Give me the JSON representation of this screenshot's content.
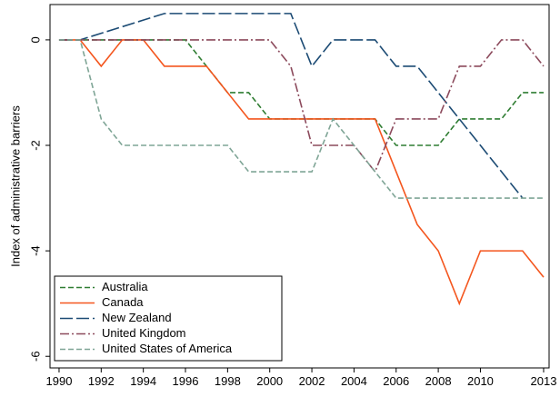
{
  "chart_data": {
    "type": "line",
    "y_label": "Index of administrative barriers",
    "x": [
      1990,
      1991,
      1992,
      1993,
      1994,
      1995,
      1996,
      1997,
      1998,
      1999,
      2000,
      2001,
      2002,
      2003,
      2004,
      2005,
      2006,
      2007,
      2008,
      2009,
      2010,
      2011,
      2012,
      2013
    ],
    "series": [
      {
        "name": "Australia",
        "color": "#2f7d32",
        "dash": "6,3",
        "values": [
          0,
          0,
          0,
          0,
          0,
          0,
          0,
          -0.5,
          -1,
          -1,
          -1.5,
          -1.5,
          -1.5,
          -1.5,
          -1.5,
          -1.5,
          -2,
          -2,
          -2,
          -1.5,
          -1.5,
          -1.5,
          -1,
          -1
        ]
      },
      {
        "name": "Canada",
        "color": "#f4561e",
        "dash": "none",
        "values": [
          0,
          0,
          -0.5,
          0,
          0,
          -0.5,
          -0.5,
          -0.5,
          -1,
          -1.5,
          -1.5,
          -1.5,
          -1.5,
          -1.5,
          -1.5,
          -1.5,
          -2.5,
          -3.5,
          -4,
          -5,
          -4,
          -4,
          -4,
          -4.5
        ]
      },
      {
        "name": "New Zealand",
        "color": "#1c4b74",
        "dash": "14,4",
        "values": [
          0,
          0,
          0.125,
          0.25,
          0.375,
          0.5,
          0.5,
          0.5,
          0.5,
          0.5,
          0.5,
          0.5,
          -0.5,
          0,
          0,
          0,
          -0.5,
          -0.5,
          -1,
          -1.5,
          -2,
          -2.5,
          -3,
          null
        ]
      },
      {
        "name": "United Kingdom",
        "color": "#8c4a5c",
        "dash": "10,3,2,3",
        "values": [
          0,
          0,
          0,
          0,
          0,
          0,
          0,
          0,
          0,
          0,
          0,
          -0.5,
          -2,
          -2,
          -2,
          -2.5,
          -1.5,
          -1.5,
          -1.5,
          -0.5,
          -0.5,
          0,
          0,
          -0.5
        ]
      },
      {
        "name": "United States of America",
        "color": "#7fa596",
        "dash": "6,3",
        "values": [
          0,
          0,
          -1.5,
          -2,
          -2,
          -2,
          -2,
          -2,
          -2,
          -2.5,
          -2.5,
          -2.5,
          -2.5,
          -1.5,
          -2,
          -2.5,
          -3,
          -3,
          -3,
          -3,
          -3,
          -3,
          -3,
          -3
        ]
      }
    ],
    "xlim": [
      1989.57,
      2013.26
    ],
    "ylim": [
      -6.22,
      0.67
    ],
    "xticks": [
      1990,
      1992,
      1994,
      1996,
      1998,
      2000,
      2002,
      2004,
      2006,
      2008,
      2010,
      2013
    ],
    "yticks": [
      0,
      -2,
      -4,
      -6
    ],
    "legend": "lower-left"
  }
}
